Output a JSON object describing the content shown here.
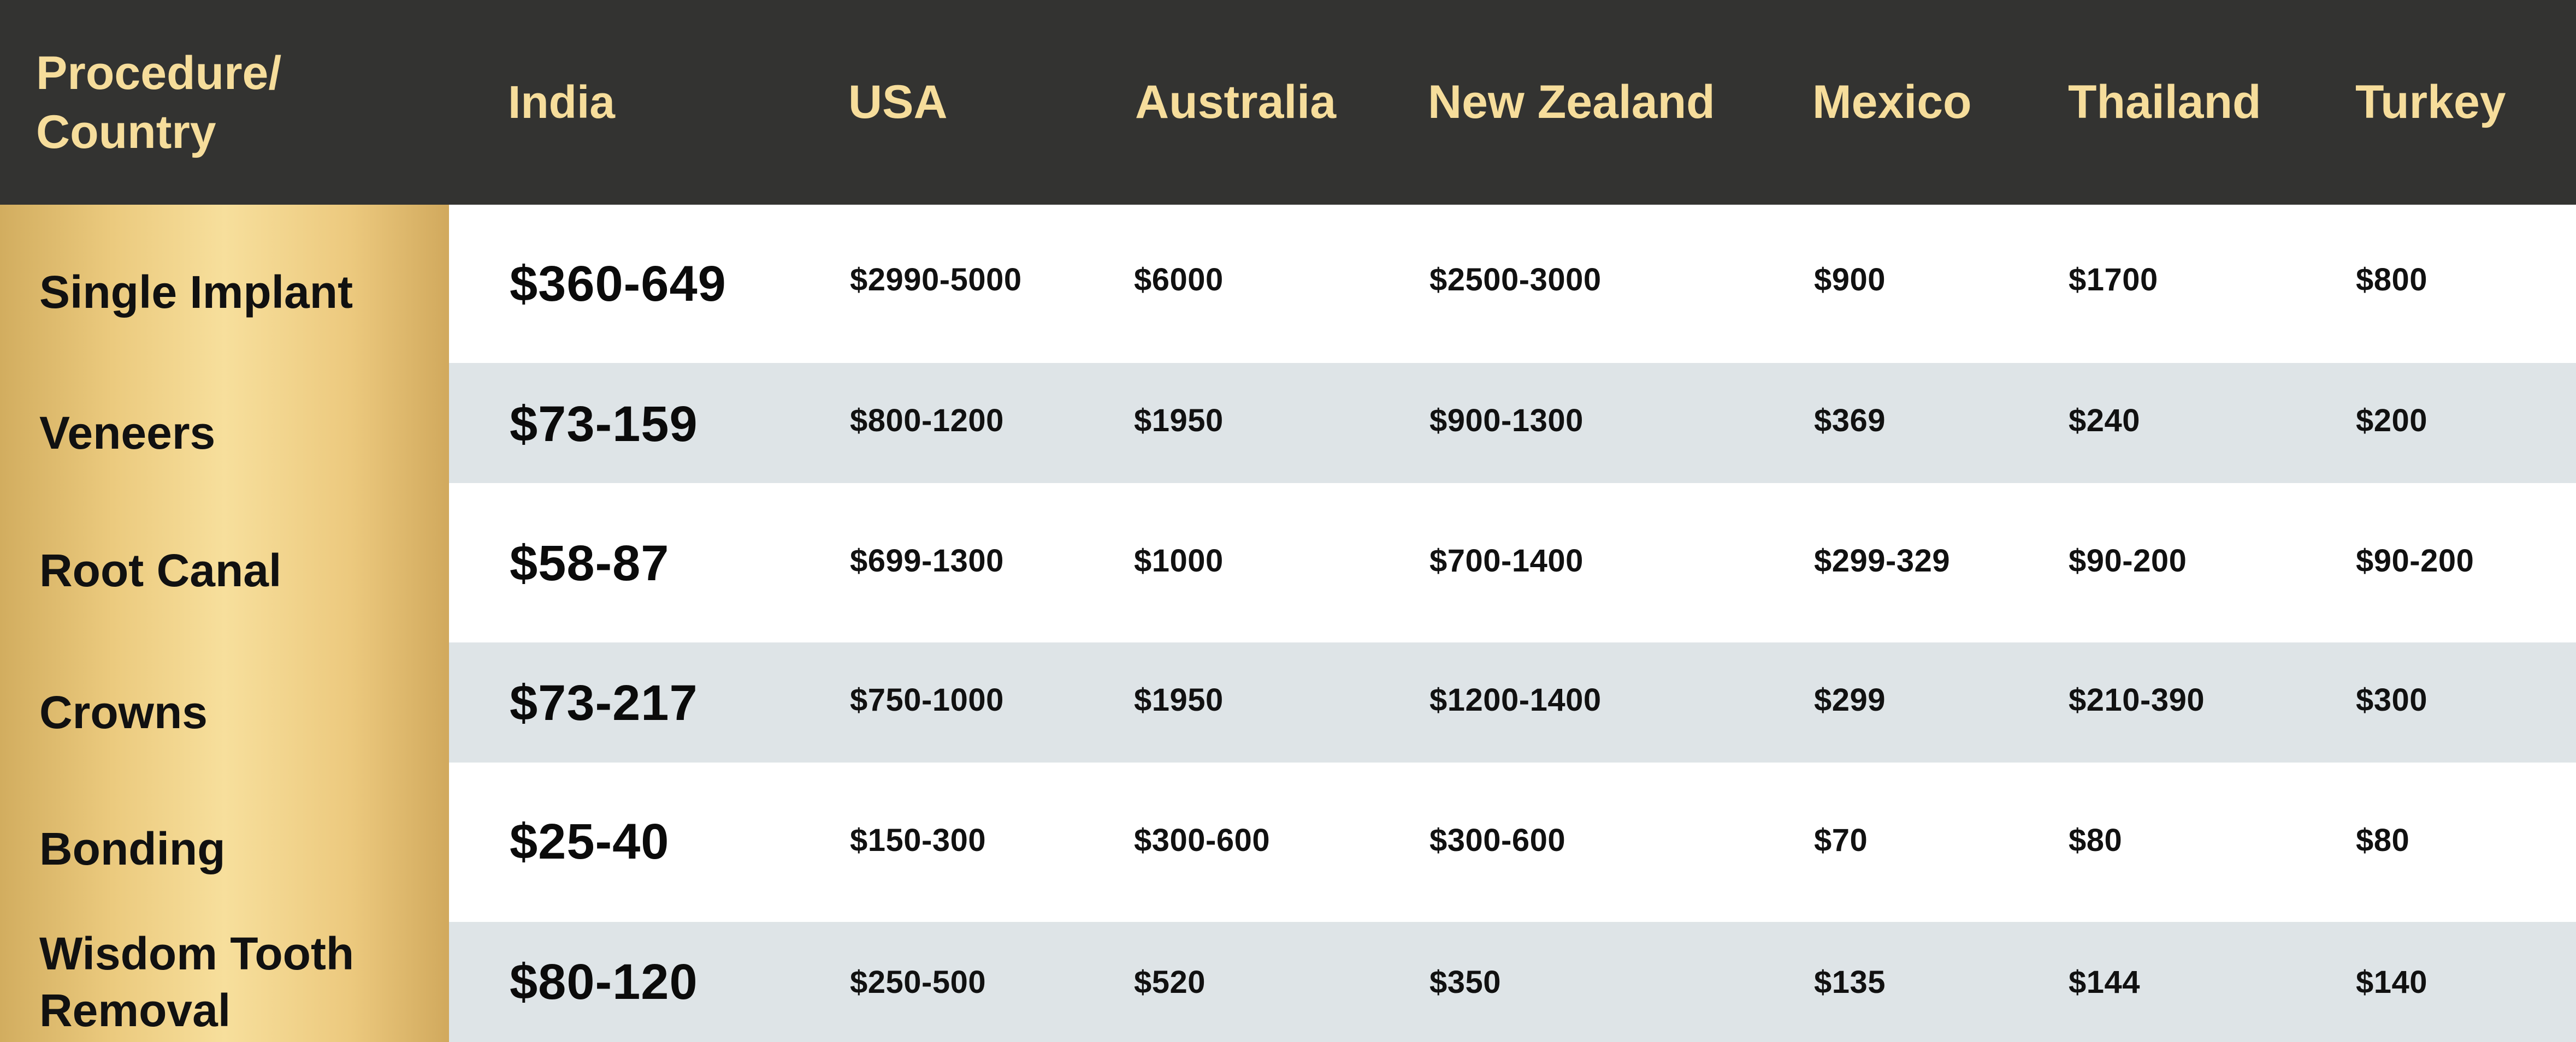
{
  "header": {
    "corner": "Procedure/ Country",
    "countries": [
      "India",
      "USA",
      "Australia",
      "New Zealand",
      "Mexico",
      "Thailand",
      "Turkey"
    ]
  },
  "rows": [
    {
      "procedure": "Single Implant",
      "prices": [
        "$360-649",
        "$2990-5000",
        "$6000",
        "$2500-3000",
        "$900",
        "$1700",
        "$800"
      ]
    },
    {
      "procedure": "Veneers",
      "prices": [
        "$73-159",
        "$800-1200",
        "$1950",
        "$900-1300",
        "$369",
        "$240",
        "$200"
      ]
    },
    {
      "procedure": "Root Canal",
      "prices": [
        "$58-87",
        "$699-1300",
        "$1000",
        "$700-1400",
        "$299-329",
        "$90-200",
        "$90-200"
      ]
    },
    {
      "procedure": "Crowns",
      "prices": [
        "$73-217",
        "$750-1000",
        "$1950",
        "$1200-1400",
        "$299",
        "$210-390",
        "$300"
      ]
    },
    {
      "procedure": "Bonding",
      "prices": [
        "$25-40",
        "$150-300",
        "$300-600",
        "$300-600",
        "$70",
        "$80",
        "$80"
      ]
    },
    {
      "procedure": "Wisdom Tooth Removal",
      "prices": [
        "$80-120",
        "$250-500",
        "$520",
        "$350",
        "$135",
        "$144",
        "$140"
      ]
    }
  ],
  "colors": {
    "header_bg": "#333331",
    "header_text": "#f6dd9b",
    "row_alt_bg": "#dee4e7",
    "gold_light": "#f7df9c",
    "gold_dark": "#d1a95d"
  }
}
